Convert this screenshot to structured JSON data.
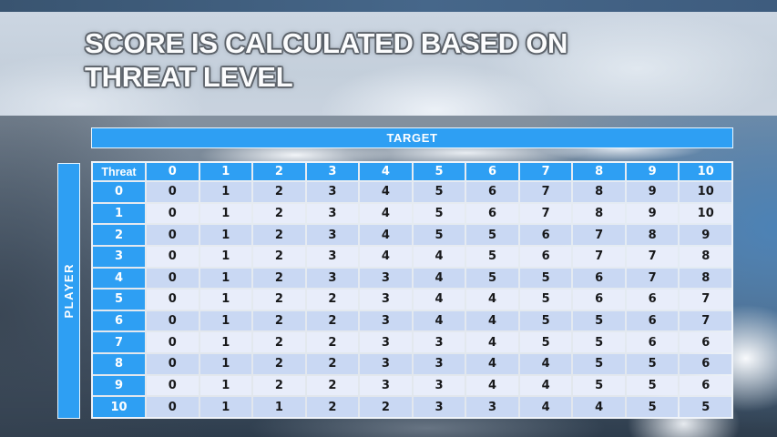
{
  "slide": {
    "title_line1": "SCORE IS CALCULATED BASED ON",
    "title_line2": "THREAT LEVEL"
  },
  "matrix": {
    "target_label": "TARGET",
    "player_label": "PLAYER",
    "corner_label": "Threat",
    "column_headers": [
      "0",
      "1",
      "2",
      "3",
      "4",
      "5",
      "6",
      "7",
      "8",
      "9",
      "10"
    ],
    "rows": [
      {
        "label": "0",
        "values": [
          "0",
          "1",
          "2",
          "3",
          "4",
          "5",
          "6",
          "7",
          "8",
          "9",
          "10"
        ]
      },
      {
        "label": "1",
        "values": [
          "0",
          "1",
          "2",
          "3",
          "4",
          "5",
          "6",
          "7",
          "8",
          "9",
          "10"
        ]
      },
      {
        "label": "2",
        "values": [
          "0",
          "1",
          "2",
          "3",
          "4",
          "5",
          "5",
          "6",
          "7",
          "8",
          "9"
        ]
      },
      {
        "label": "3",
        "values": [
          "0",
          "1",
          "2",
          "3",
          "4",
          "4",
          "5",
          "6",
          "7",
          "7",
          "8"
        ]
      },
      {
        "label": "4",
        "values": [
          "0",
          "1",
          "2",
          "3",
          "3",
          "4",
          "5",
          "5",
          "6",
          "7",
          "8"
        ]
      },
      {
        "label": "5",
        "values": [
          "0",
          "1",
          "2",
          "2",
          "3",
          "4",
          "4",
          "5",
          "6",
          "6",
          "7"
        ]
      },
      {
        "label": "6",
        "values": [
          "0",
          "1",
          "2",
          "2",
          "3",
          "4",
          "4",
          "5",
          "5",
          "6",
          "7"
        ]
      },
      {
        "label": "7",
        "values": [
          "0",
          "1",
          "2",
          "2",
          "3",
          "3",
          "4",
          "5",
          "5",
          "6",
          "6"
        ]
      },
      {
        "label": "8",
        "values": [
          "0",
          "1",
          "2",
          "2",
          "3",
          "3",
          "4",
          "4",
          "5",
          "5",
          "6"
        ]
      },
      {
        "label": "9",
        "values": [
          "0",
          "1",
          "2",
          "2",
          "3",
          "3",
          "4",
          "4",
          "5",
          "5",
          "6"
        ]
      },
      {
        "label": "10",
        "values": [
          "0",
          "1",
          "1",
          "2",
          "2",
          "3",
          "3",
          "4",
          "4",
          "5",
          "5"
        ]
      }
    ]
  },
  "colors": {
    "accent_blue": "#2E9FF3",
    "row_shaded": "#C9D8F3",
    "row_light": "#E8EDFA",
    "header_text": "#FFFFFF",
    "cell_text": "#17181A"
  }
}
